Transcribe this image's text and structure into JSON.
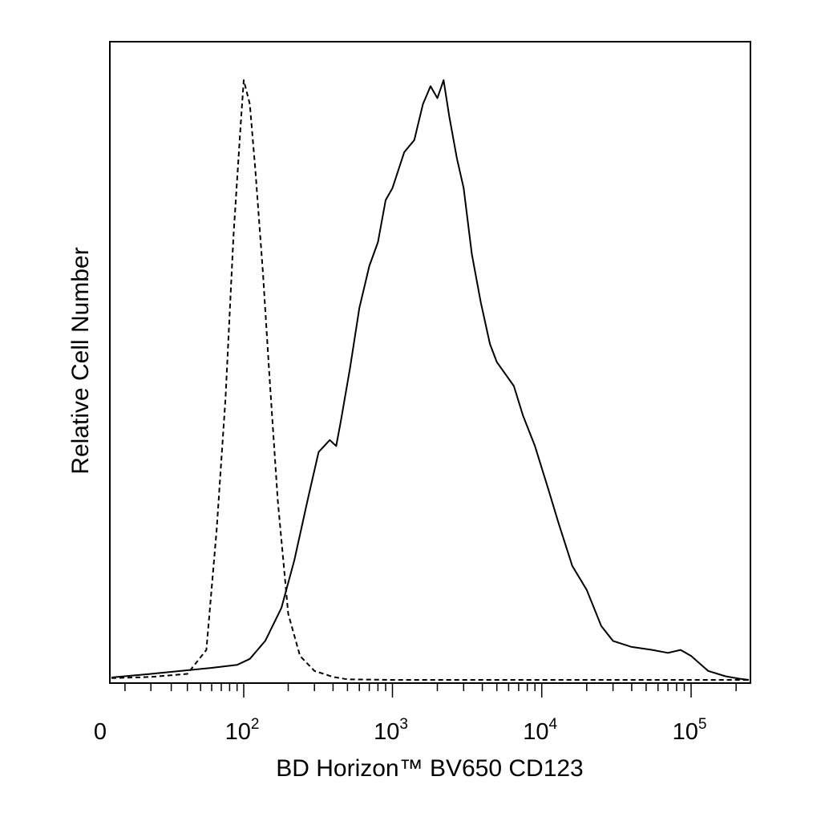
{
  "chart_data": {
    "type": "line",
    "title": "",
    "xlabel": "BD Horizon™ BV650 CD123",
    "ylabel": "Relative Cell Number",
    "x_scale": "biexponential",
    "xlim": [
      -30,
      250000
    ],
    "ylim": [
      0,
      1
    ],
    "grid": false,
    "legend": "none",
    "x_tick_labels": [
      {
        "value": 0,
        "label": "0"
      },
      {
        "value": 100,
        "base": "10",
        "exp": "2"
      },
      {
        "value": 1000,
        "base": "10",
        "exp": "3"
      },
      {
        "value": 10000,
        "base": "10",
        "exp": "4"
      },
      {
        "value": 100000,
        "base": "10",
        "exp": "5"
      }
    ],
    "series": [
      {
        "style": "dashed",
        "color": "#000000",
        "x": [
          -30,
          20,
          40,
          55,
          65,
          75,
          85,
          95,
          100,
          110,
          120,
          135,
          150,
          170,
          200,
          240,
          300,
          400,
          500,
          1000,
          10000,
          100000,
          250000
        ],
        "y": [
          0.003,
          0.005,
          0.01,
          0.05,
          0.25,
          0.47,
          0.74,
          0.92,
          1.0,
          0.96,
          0.85,
          0.68,
          0.5,
          0.3,
          0.11,
          0.04,
          0.015,
          0.005,
          0.001,
          0.0,
          0.0,
          0.0,
          0.0
        ]
      },
      {
        "style": "solid",
        "color": "#000000",
        "x": [
          -30,
          20,
          60,
          90,
          110,
          140,
          180,
          220,
          270,
          320,
          380,
          420,
          450,
          520,
          600,
          700,
          800,
          900,
          1000,
          1200,
          1400,
          1600,
          1800,
          2000,
          2200,
          2400,
          2700,
          3000,
          3400,
          3900,
          4500,
          5000,
          5700,
          6500,
          7500,
          9000,
          11000,
          13000,
          16000,
          20000,
          25000,
          30000,
          40000,
          55000,
          70000,
          85000,
          100000,
          130000,
          170000,
          210000,
          250000
        ],
        "y": [
          0.004,
          0.01,
          0.02,
          0.025,
          0.035,
          0.065,
          0.12,
          0.2,
          0.3,
          0.38,
          0.4,
          0.39,
          0.43,
          0.52,
          0.62,
          0.69,
          0.73,
          0.8,
          0.82,
          0.88,
          0.9,
          0.96,
          0.99,
          0.97,
          1.0,
          0.94,
          0.87,
          0.82,
          0.71,
          0.63,
          0.56,
          0.53,
          0.51,
          0.49,
          0.44,
          0.39,
          0.32,
          0.26,
          0.19,
          0.15,
          0.09,
          0.065,
          0.055,
          0.05,
          0.045,
          0.05,
          0.04,
          0.015,
          0.006,
          0.002,
          0.0
        ]
      }
    ]
  }
}
